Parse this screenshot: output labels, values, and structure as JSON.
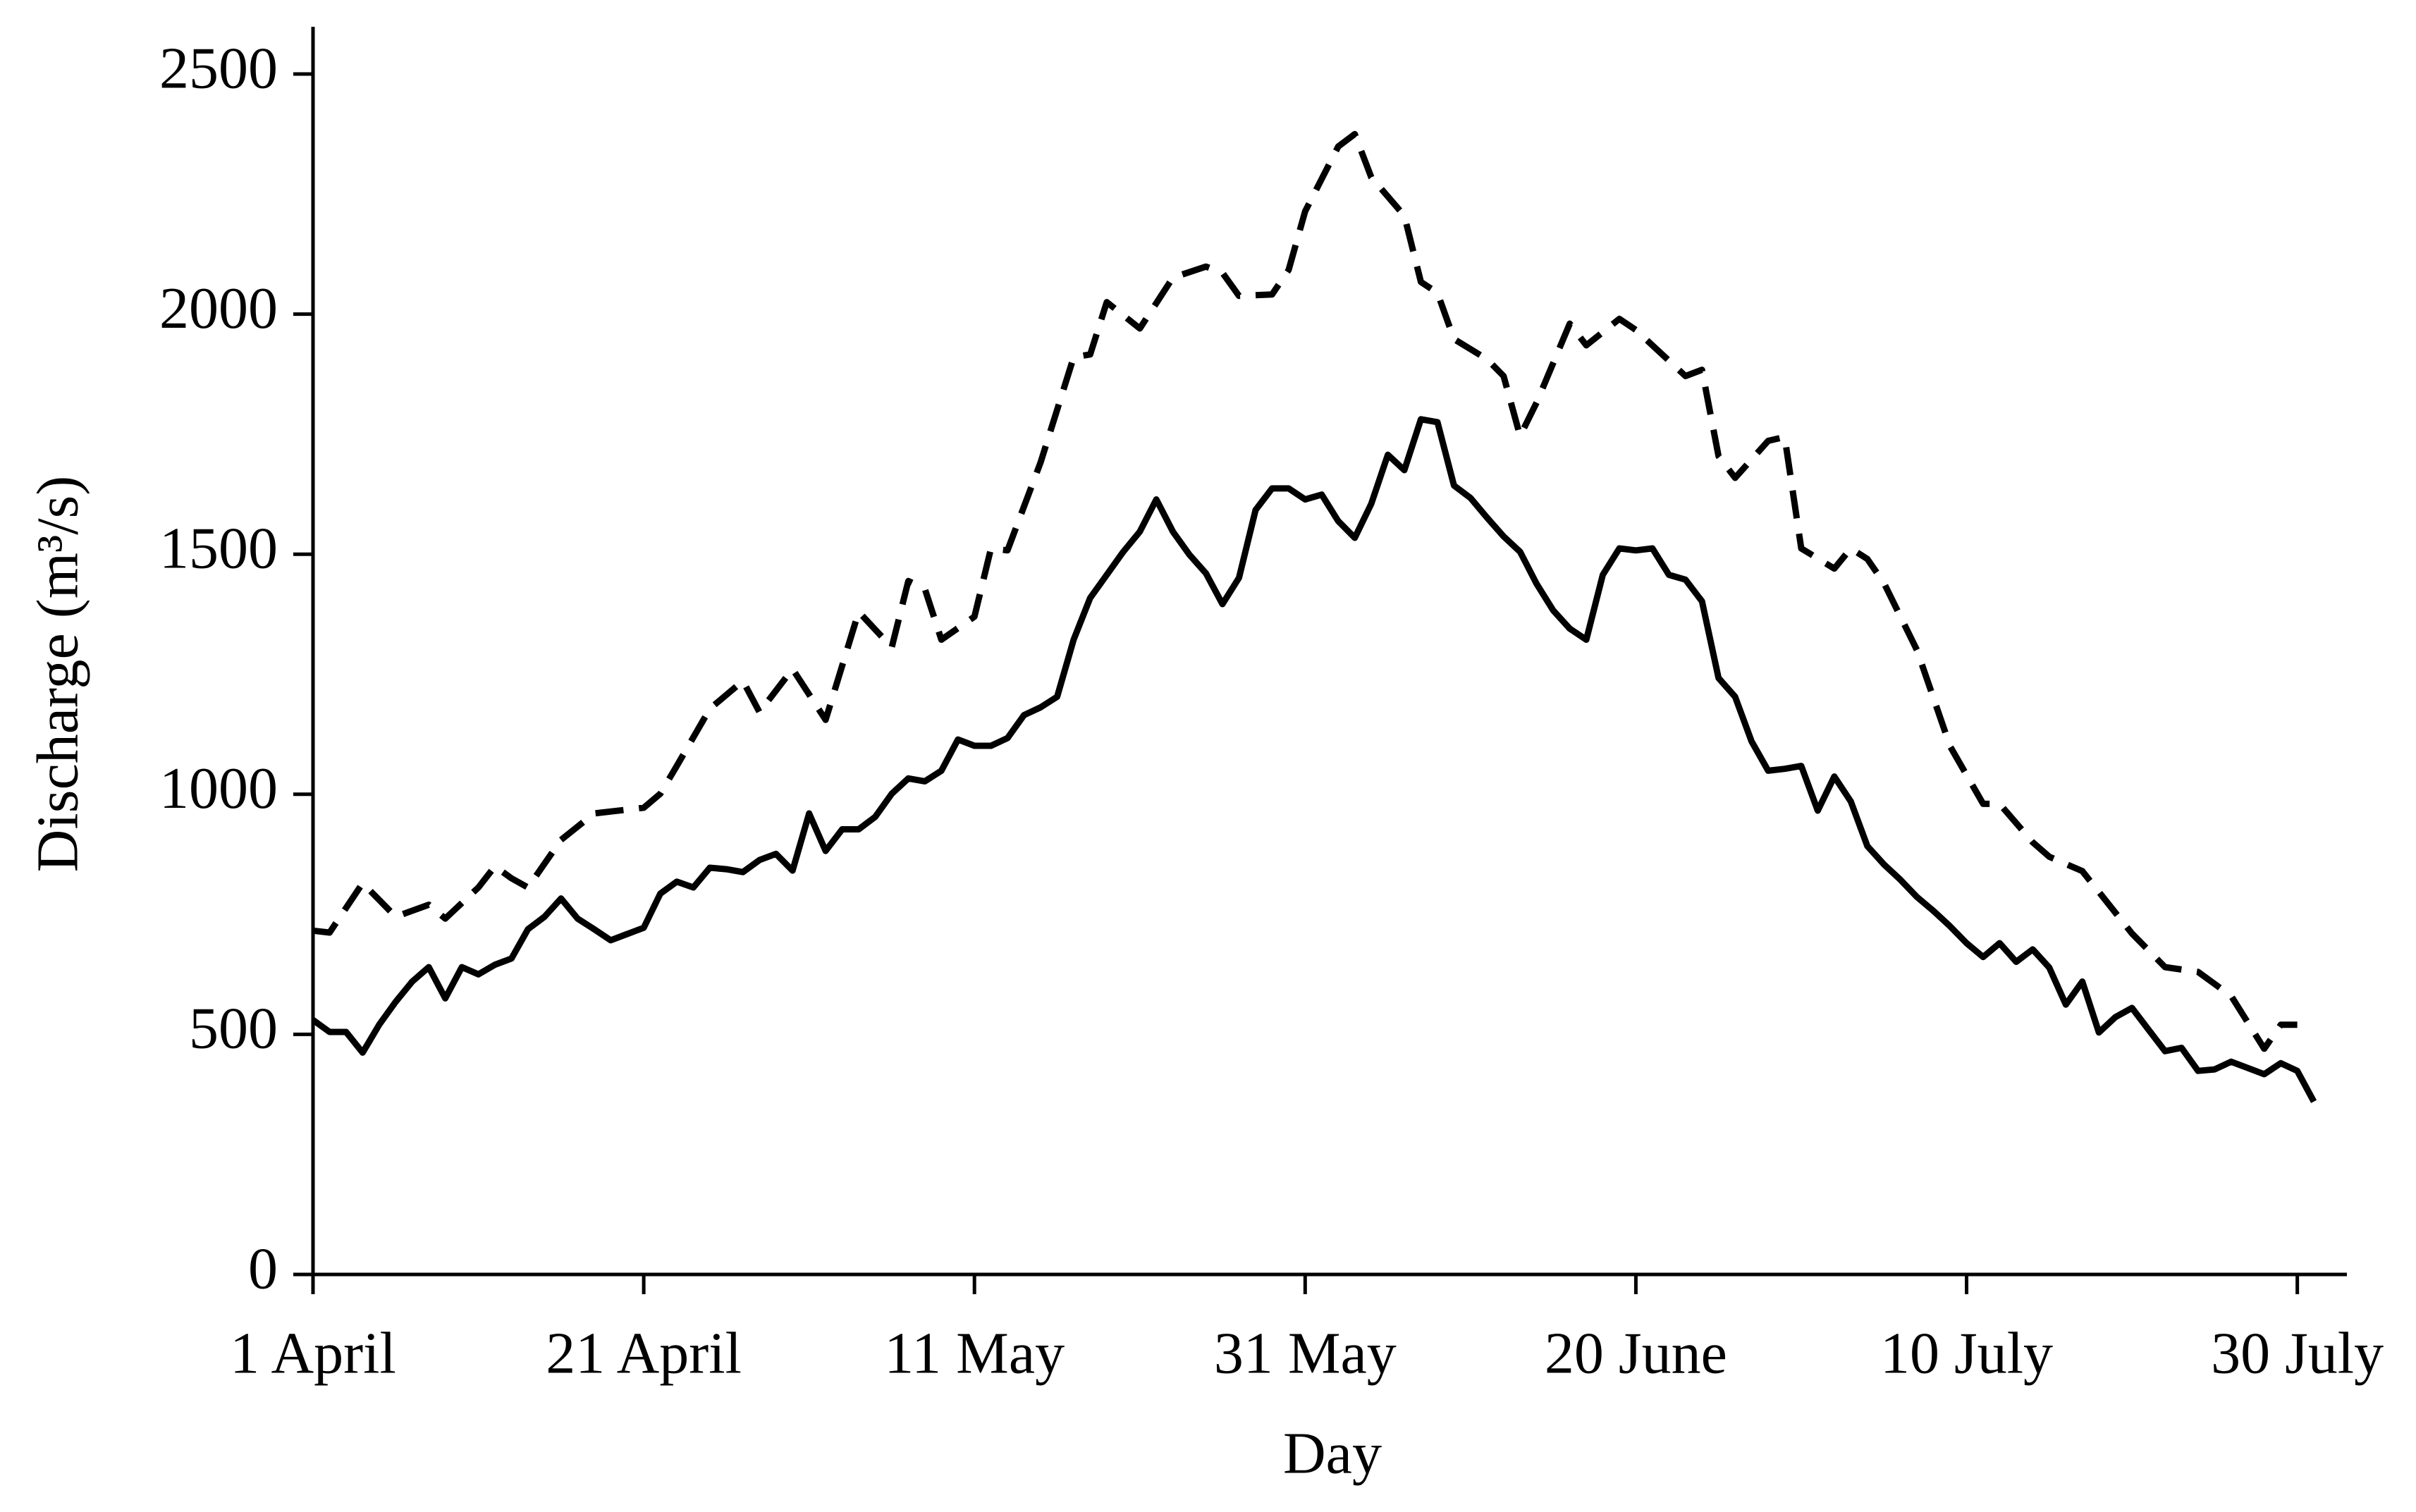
{
  "chart_data": {
    "type": "line",
    "xlabel": "Day",
    "ylabel": "Discharge (m³/s)",
    "xlim": [
      0,
      123
    ],
    "xticks": [
      {
        "value": 0,
        "label": "1 April"
      },
      {
        "value": 20,
        "label": "21 April"
      },
      {
        "value": 40,
        "label": "11 May"
      },
      {
        "value": 60,
        "label": "31 May"
      },
      {
        "value": 80,
        "label": "20 June"
      },
      {
        "value": 100,
        "label": "10 July"
      },
      {
        "value": 120,
        "label": "30 July"
      }
    ],
    "ylim": [
      0,
      2500
    ],
    "yticks": [
      0,
      500,
      1000,
      1500,
      2000,
      2500
    ],
    "grid": false,
    "series": [
      {
        "color": "#000000",
        "line_style": "solid",
        "x": [
          0,
          1,
          2,
          3,
          4,
          5,
          6,
          7,
          8,
          9,
          10,
          11,
          12,
          13,
          14,
          15,
          16,
          17,
          18,
          19,
          20,
          21,
          22,
          23,
          24,
          25,
          26,
          27,
          28,
          29,
          30,
          31,
          32,
          33,
          34,
          35,
          36,
          37,
          38,
          39,
          40,
          41,
          42,
          43,
          44,
          45,
          46,
          47,
          48,
          49,
          50,
          51,
          52,
          53,
          54,
          55,
          56,
          57,
          58,
          59,
          60,
          61,
          62,
          63,
          64,
          65,
          66,
          67,
          68,
          69,
          70,
          71,
          72,
          73,
          74,
          75,
          76,
          77,
          78,
          79,
          80,
          81,
          82,
          83,
          84,
          85,
          86,
          87,
          88,
          89,
          90,
          91,
          92,
          93,
          94,
          95,
          96,
          97,
          98,
          99,
          100,
          101,
          102,
          103,
          104,
          105,
          106,
          107,
          108,
          109,
          110,
          111,
          112,
          113,
          114,
          115,
          116,
          117,
          118,
          119,
          120,
          121
        ],
        "values": [
          530,
          505,
          505,
          462,
          520,
          568,
          610,
          640,
          575,
          640,
          625,
          645,
          658,
          719,
          745,
          783,
          741,
          719,
          696,
          709,
          722,
          793,
          818,
          806,
          847,
          844,
          838,
          863,
          876,
          841,
          960,
          882,
          927,
          927,
          953,
          1001,
          1033,
          1027,
          1049,
          1114,
          1101,
          1101,
          1117,
          1165,
          1181,
          1203,
          1322,
          1409,
          1457,
          1505,
          1547,
          1614,
          1547,
          1499,
          1460,
          1396,
          1451,
          1592,
          1637,
          1637,
          1614,
          1624,
          1569,
          1534,
          1605,
          1707,
          1675,
          1781,
          1775,
          1643,
          1617,
          1576,
          1537,
          1505,
          1438,
          1383,
          1345,
          1322,
          1457,
          1512,
          1508,
          1512,
          1457,
          1447,
          1402,
          1242,
          1203,
          1110,
          1049,
          1053,
          1059,
          966,
          1037,
          985,
          892,
          854,
          822,
          786,
          757,
          725,
          690,
          661,
          690,
          651,
          677,
          639,
          562,
          610,
          504,
          536,
          555,
          510,
          465,
          472,
          424,
          427,
          443,
          430,
          417,
          440,
          424,
          360
        ]
      },
      {
        "color": "#000000",
        "line_style": "dashed",
        "x": [
          0,
          1,
          3,
          5,
          7,
          8,
          10,
          11,
          12,
          13,
          15,
          17,
          20,
          21,
          22,
          24,
          26,
          27,
          29,
          31,
          33,
          35,
          36,
          37,
          38,
          40,
          41,
          42,
          44,
          46,
          47,
          48,
          50,
          52,
          54,
          55,
          56,
          58,
          59,
          60,
          62,
          63,
          64,
          66,
          67,
          68,
          69,
          71,
          72,
          73,
          74,
          76,
          77,
          79,
          80,
          81,
          83,
          84,
          85,
          86,
          88,
          89,
          90,
          92,
          93,
          94,
          95,
          97,
          99,
          101,
          102,
          104,
          105,
          107,
          110,
          112,
          114,
          116,
          118,
          119,
          120
        ],
        "values": [
          716,
          712,
          815,
          745,
          770,
          741,
          806,
          850,
          825,
          806,
          905,
          960,
          972,
          1001,
          1059,
          1178,
          1236,
          1171,
          1261,
          1155,
          1380,
          1306,
          1444,
          1428,
          1322,
          1370,
          1512,
          1508,
          1691,
          1910,
          1916,
          2025,
          1970,
          2076,
          2099,
          2086,
          2038,
          2041,
          2092,
          2214,
          2349,
          2375,
          2285,
          2205,
          2067,
          2044,
          1948,
          1906,
          1871,
          1746,
          1816,
          1980,
          1935,
          1990,
          1967,
          1935,
          1871,
          1884,
          1704,
          1659,
          1736,
          1744,
          1512,
          1470,
          1512,
          1490,
          1440,
          1300,
          1100,
          980,
          980,
          900,
          870,
          840,
          710,
          640,
          630,
          580,
          470,
          520,
          520
        ]
      }
    ]
  }
}
